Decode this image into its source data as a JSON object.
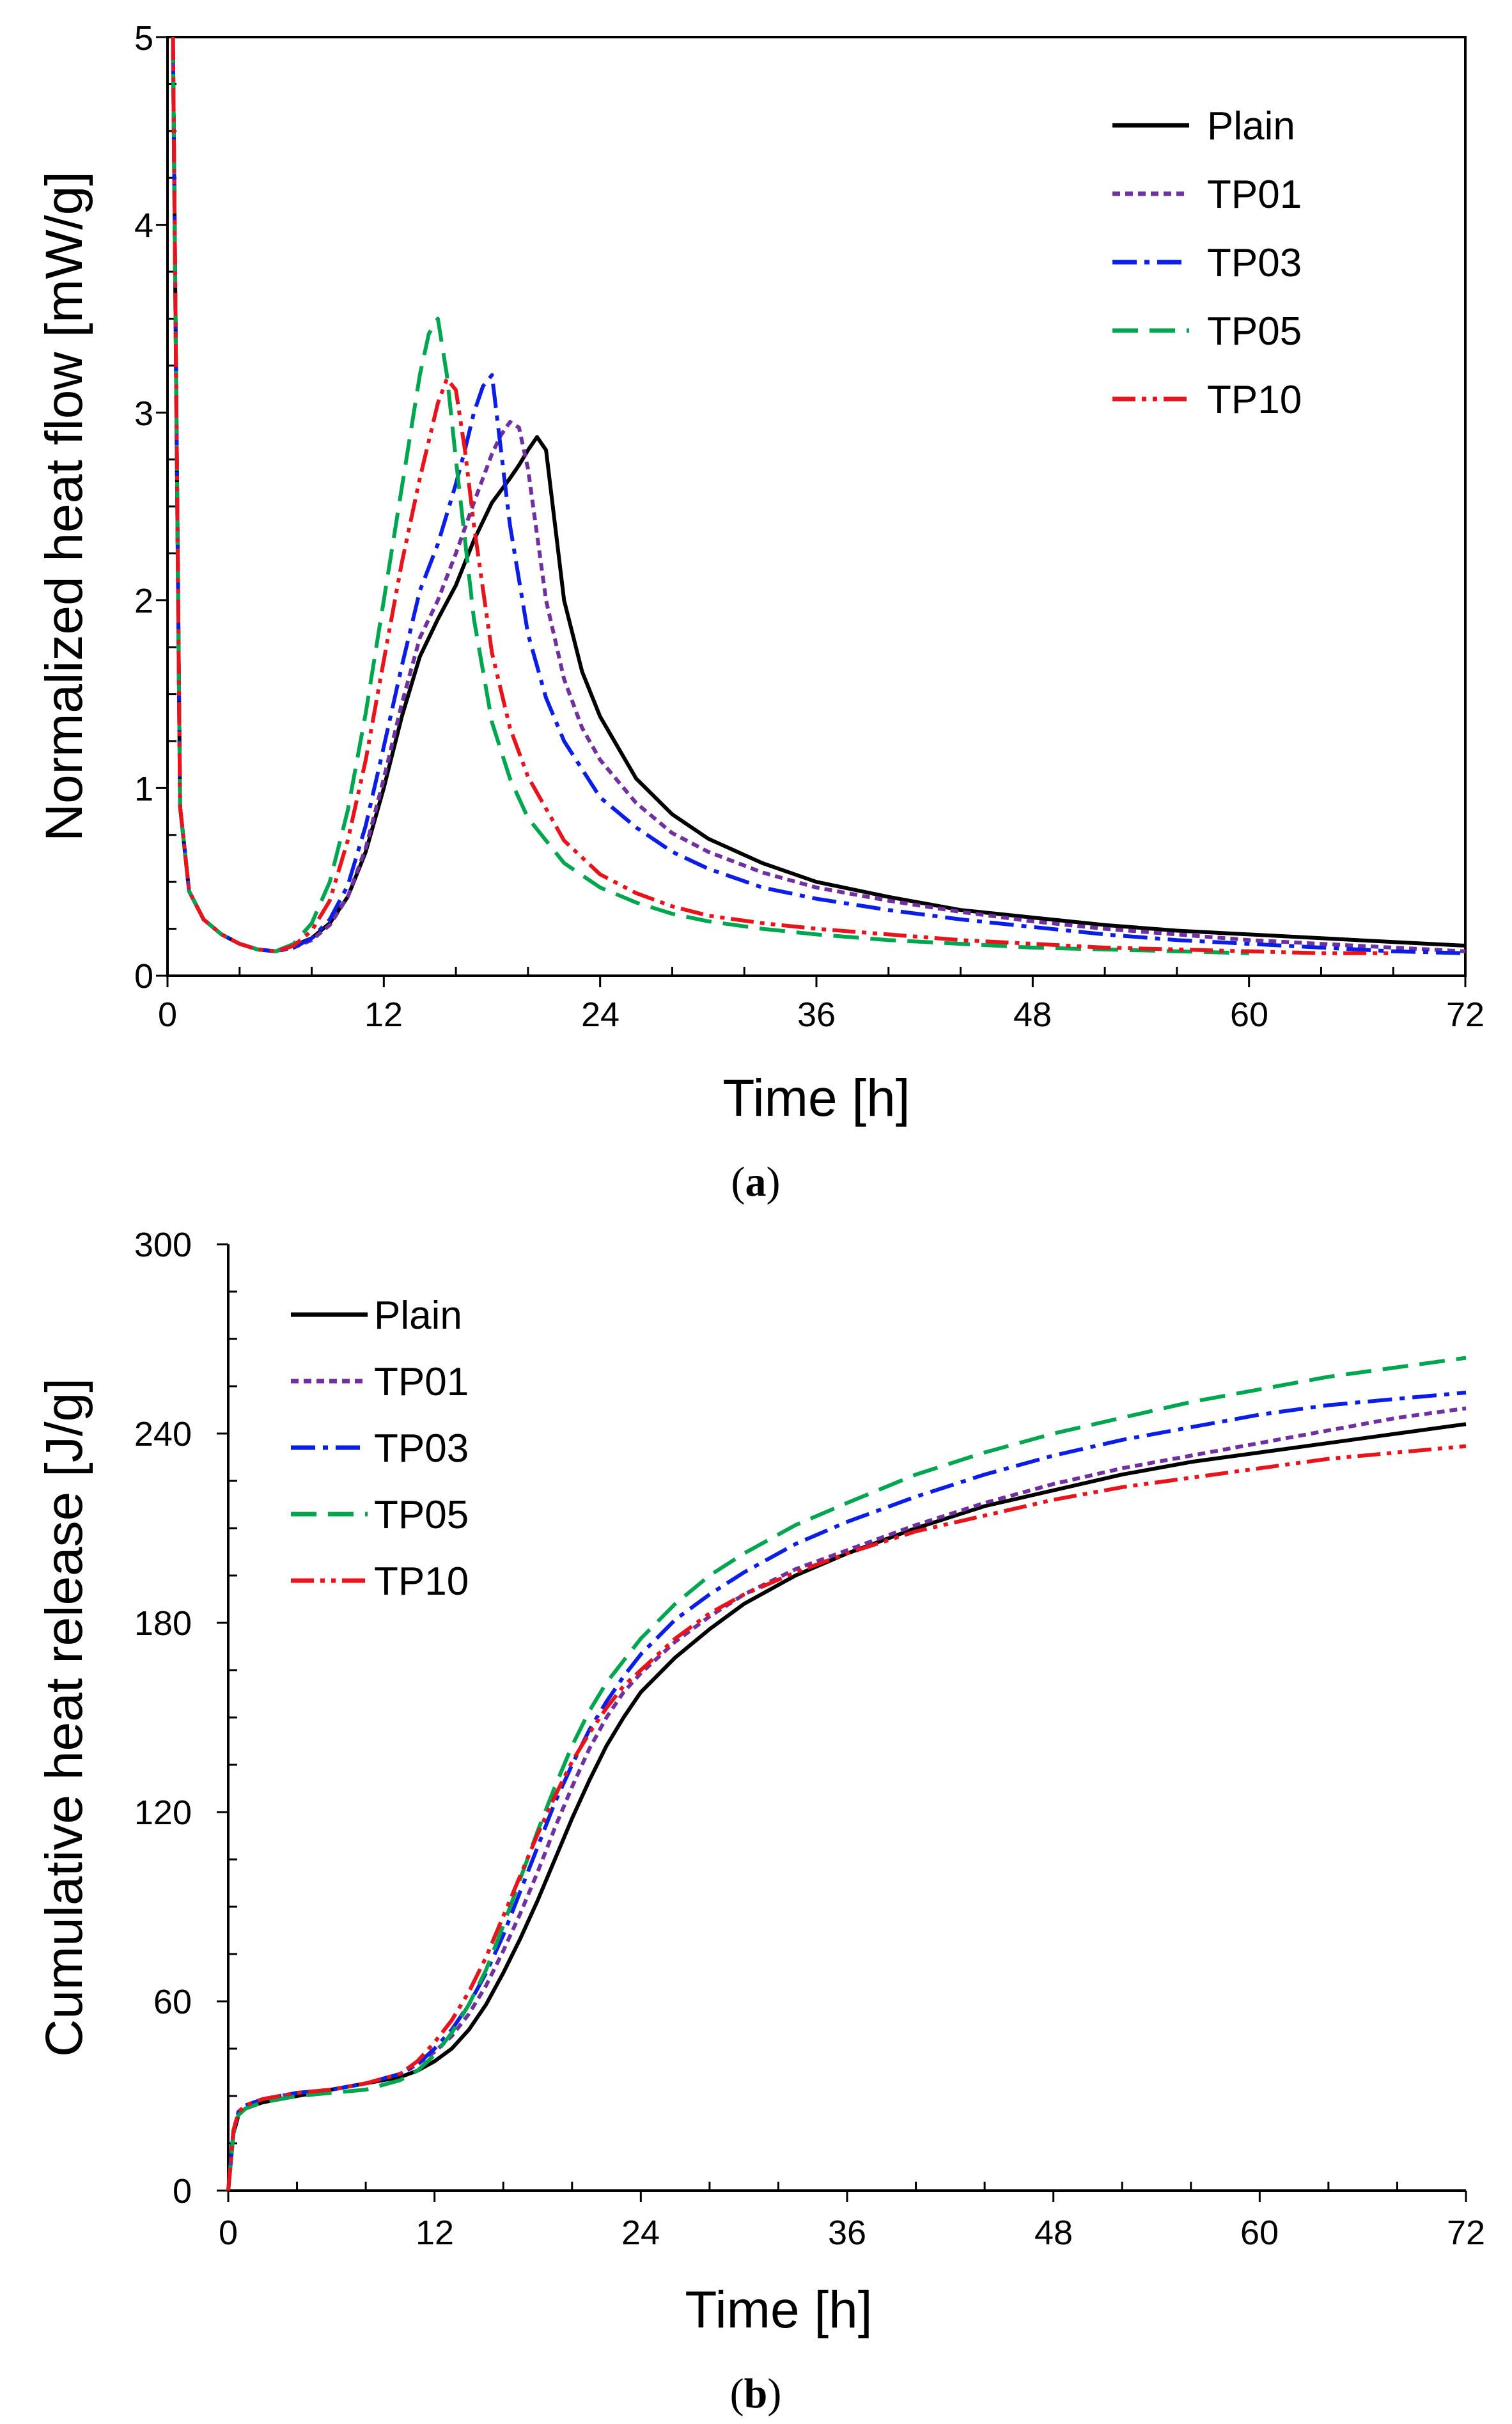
{
  "chart_data": [
    {
      "type": "line",
      "id": "a",
      "caption_letter": "a",
      "xlabel": "Time [h]",
      "ylabel": "Normalized heat flow [mW/g]",
      "xlim": [
        0,
        72
      ],
      "ylim": [
        0,
        5
      ],
      "xticks": [
        "0",
        "12",
        "24",
        "36",
        "48",
        "60",
        "72"
      ],
      "yticks": [
        "0",
        "1",
        "2",
        "3",
        "4",
        "5"
      ],
      "legend_position": "top-right",
      "series": [
        {
          "name": "Plain",
          "color": "#000000",
          "dash": "solid",
          "x": [
            0.3,
            0.7,
            1.2,
            2,
            3,
            4,
            5,
            6,
            7,
            8,
            9,
            10,
            11,
            12,
            13,
            14,
            15,
            16,
            17,
            18,
            19,
            19.5,
            20,
            20.5,
            21,
            21.5,
            22,
            23,
            24,
            26,
            28,
            30,
            33,
            36,
            40,
            44,
            48,
            52,
            56,
            60,
            64,
            68,
            72
          ],
          "y": [
            5,
            0.9,
            0.45,
            0.3,
            0.22,
            0.17,
            0.14,
            0.13,
            0.16,
            0.2,
            0.28,
            0.42,
            0.66,
            1.0,
            1.38,
            1.7,
            1.9,
            2.08,
            2.32,
            2.52,
            2.65,
            2.72,
            2.8,
            2.87,
            2.8,
            2.4,
            2.0,
            1.62,
            1.38,
            1.05,
            0.86,
            0.73,
            0.6,
            0.5,
            0.42,
            0.35,
            0.31,
            0.27,
            0.24,
            0.22,
            0.2,
            0.18,
            0.16
          ]
        },
        {
          "name": "TP01",
          "color": "#7030a0",
          "dash": "dotted",
          "x": [
            0.3,
            0.7,
            1.2,
            2,
            3,
            4,
            5,
            6,
            7,
            8,
            9,
            10,
            11,
            12,
            13,
            14,
            15,
            16,
            17,
            18,
            18.5,
            19,
            19.5,
            20,
            21,
            22,
            23,
            24,
            26,
            28,
            30,
            33,
            36,
            40,
            44,
            48,
            52,
            56,
            60,
            64,
            68,
            72
          ],
          "y": [
            5,
            0.9,
            0.45,
            0.3,
            0.22,
            0.17,
            0.14,
            0.13,
            0.15,
            0.19,
            0.27,
            0.42,
            0.68,
            1.05,
            1.45,
            1.8,
            2.0,
            2.25,
            2.52,
            2.78,
            2.88,
            2.95,
            2.92,
            2.7,
            2.0,
            1.58,
            1.32,
            1.15,
            0.92,
            0.76,
            0.66,
            0.55,
            0.47,
            0.4,
            0.34,
            0.29,
            0.25,
            0.22,
            0.19,
            0.17,
            0.15,
            0.13
          ]
        },
        {
          "name": "TP03",
          "color": "#0b1ee6",
          "dash": "dashdot",
          "x": [
            0.3,
            0.7,
            1.2,
            2,
            3,
            4,
            5,
            6,
            7,
            8,
            9,
            10,
            11,
            12,
            13,
            14,
            15,
            16,
            16.5,
            17,
            17.5,
            18,
            19,
            20,
            21,
            22,
            24,
            26,
            28,
            30,
            33,
            36,
            40,
            44,
            48,
            52,
            56,
            60,
            64,
            68,
            72
          ],
          "y": [
            5,
            0.9,
            0.45,
            0.3,
            0.22,
            0.17,
            0.14,
            0.13,
            0.15,
            0.2,
            0.3,
            0.48,
            0.8,
            1.22,
            1.65,
            2.05,
            2.3,
            2.62,
            2.8,
            3.0,
            3.14,
            3.2,
            2.4,
            1.82,
            1.48,
            1.25,
            0.95,
            0.79,
            0.66,
            0.57,
            0.47,
            0.41,
            0.35,
            0.3,
            0.26,
            0.22,
            0.19,
            0.17,
            0.15,
            0.13,
            0.12
          ]
        },
        {
          "name": "TP05",
          "color": "#00a550",
          "dash": "dashed",
          "x": [
            0.3,
            0.7,
            1.2,
            2,
            3,
            4,
            5,
            6,
            7,
            8,
            9,
            10,
            11,
            12,
            13,
            14,
            14.5,
            15,
            15.5,
            16,
            17,
            18,
            19,
            20,
            22,
            24,
            26,
            28,
            30,
            33,
            36,
            40,
            44,
            48,
            52,
            56,
            60
          ],
          "y": [
            5,
            0.9,
            0.45,
            0.3,
            0.22,
            0.17,
            0.14,
            0.13,
            0.17,
            0.28,
            0.5,
            0.88,
            1.4,
            2.0,
            2.6,
            3.2,
            3.42,
            3.5,
            3.2,
            2.75,
            1.9,
            1.35,
            1.05,
            0.84,
            0.6,
            0.47,
            0.39,
            0.33,
            0.29,
            0.25,
            0.22,
            0.19,
            0.17,
            0.15,
            0.14,
            0.13,
            0.12
          ]
        },
        {
          "name": "TP10",
          "color": "#e8141b",
          "dash": "dashdotdot",
          "x": [
            0.3,
            0.7,
            1.2,
            2,
            3,
            4,
            5,
            6,
            7,
            8,
            9,
            10,
            11,
            12,
            13,
            14,
            15,
            15.5,
            16,
            16.5,
            17,
            18,
            19,
            20,
            22,
            24,
            26,
            28,
            30,
            33,
            36,
            40,
            44,
            48,
            52,
            56,
            60,
            64,
            68
          ],
          "y": [
            5,
            0.9,
            0.45,
            0.3,
            0.22,
            0.17,
            0.14,
            0.13,
            0.16,
            0.24,
            0.4,
            0.72,
            1.15,
            1.68,
            2.2,
            2.65,
            3.05,
            3.18,
            3.12,
            2.8,
            2.4,
            1.72,
            1.32,
            1.06,
            0.72,
            0.54,
            0.44,
            0.37,
            0.32,
            0.28,
            0.25,
            0.22,
            0.19,
            0.17,
            0.15,
            0.14,
            0.13,
            0.12,
            0.12
          ]
        }
      ]
    },
    {
      "type": "line",
      "id": "b",
      "caption_letter": "b",
      "xlabel": "Time [h]",
      "ylabel": "Cumulative heat release [J/g]",
      "xlim": [
        0,
        72
      ],
      "ylim": [
        0,
        300
      ],
      "xticks": [
        "0",
        "12",
        "24",
        "36",
        "48",
        "60",
        "72"
      ],
      "yticks": [
        "0",
        "60",
        "120",
        "180",
        "240",
        "300"
      ],
      "legend_position": "top-left",
      "series": [
        {
          "name": "Plain",
          "color": "#000000",
          "dash": "solid",
          "x": [
            0,
            0.3,
            0.6,
            1,
            2,
            4,
            6,
            8,
            10,
            11,
            12,
            13,
            14,
            15,
            16,
            17,
            18,
            19,
            20,
            21,
            22,
            23,
            24,
            26,
            28,
            30,
            33,
            36,
            40,
            44,
            48,
            52,
            56,
            60,
            64,
            68,
            72
          ],
          "y": [
            0,
            18,
            24,
            26,
            28,
            30,
            32,
            34,
            36,
            38,
            41,
            45,
            51,
            59,
            69,
            80,
            92,
            105,
            118,
            130,
            141,
            150,
            158,
            169,
            178,
            186,
            195,
            202,
            210,
            217,
            222,
            227,
            231,
            234,
            237,
            240,
            243
          ]
        },
        {
          "name": "TP01",
          "color": "#7030a0",
          "dash": "dotted",
          "x": [
            0,
            0.3,
            0.6,
            1,
            2,
            4,
            6,
            8,
            10,
            11,
            12,
            13,
            14,
            15,
            16,
            17,
            18,
            19,
            20,
            21,
            22,
            23,
            24,
            26,
            28,
            30,
            33,
            36,
            40,
            44,
            48,
            52,
            56,
            60,
            64,
            68,
            72
          ],
          "y": [
            0,
            19,
            25,
            27,
            29,
            31,
            32,
            34,
            37,
            40,
            44,
            49,
            56,
            65,
            76,
            88,
            101,
            115,
            128,
            140,
            150,
            158,
            164,
            174,
            182,
            189,
            197,
            203,
            211,
            218,
            224,
            229,
            233,
            237,
            241,
            245,
            248
          ]
        },
        {
          "name": "TP03",
          "color": "#0b1ee6",
          "dash": "dashdot",
          "x": [
            0,
            0.3,
            0.6,
            1,
            2,
            4,
            6,
            8,
            10,
            11,
            12,
            13,
            14,
            15,
            16,
            17,
            18,
            19,
            20,
            21,
            22,
            23,
            24,
            26,
            28,
            30,
            33,
            36,
            40,
            44,
            48,
            52,
            56,
            60,
            64,
            68,
            72
          ],
          "y": [
            0,
            19,
            25,
            27,
            29,
            31,
            32,
            34,
            37,
            40,
            45,
            51,
            59,
            69,
            81,
            95,
            109,
            123,
            135,
            146,
            155,
            163,
            170,
            181,
            189,
            196,
            205,
            212,
            220,
            227,
            233,
            238,
            242,
            246,
            249,
            251,
            253
          ]
        },
        {
          "name": "TP05",
          "color": "#00a550",
          "dash": "dashed",
          "x": [
            0,
            0.3,
            0.6,
            1,
            2,
            4,
            6,
            8,
            10,
            11,
            12,
            13,
            14,
            15,
            16,
            17,
            18,
            19,
            20,
            21,
            22,
            23,
            24,
            26,
            28,
            30,
            33,
            36,
            40,
            44,
            48,
            52,
            56,
            60,
            64,
            68,
            72
          ],
          "y": [
            0,
            18,
            24,
            26,
            28,
            30,
            31,
            32,
            35,
            38,
            43,
            50,
            59,
            70,
            84,
            99,
            114,
            128,
            141,
            152,
            161,
            168,
            175,
            186,
            195,
            202,
            211,
            218,
            227,
            234,
            240,
            245,
            250,
            254,
            258,
            261,
            264
          ]
        },
        {
          "name": "TP10",
          "color": "#e8141b",
          "dash": "dashdotdot",
          "x": [
            0,
            0.3,
            0.6,
            1,
            2,
            4,
            6,
            8,
            10,
            11,
            12,
            13,
            14,
            15,
            16,
            17,
            18,
            19,
            20,
            21,
            22,
            23,
            24,
            26,
            28,
            30,
            33,
            36,
            40,
            44,
            48,
            52,
            56,
            60,
            64,
            68,
            72
          ],
          "y": [
            0,
            19,
            25,
            27,
            29,
            31,
            32,
            34,
            37,
            41,
            47,
            54,
            63,
            74,
            87,
            100,
            113,
            125,
            136,
            145,
            153,
            160,
            165,
            175,
            183,
            189,
            196,
            202,
            209,
            214,
            219,
            223,
            226,
            229,
            232,
            234,
            236
          ]
        }
      ]
    }
  ]
}
